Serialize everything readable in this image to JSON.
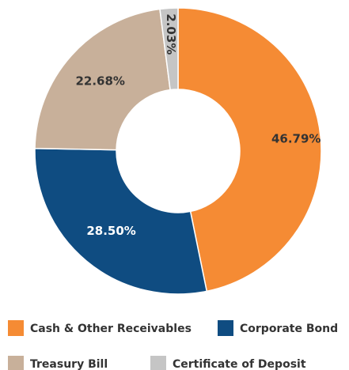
{
  "chart_data": {
    "type": "donut",
    "categories": [
      "Cash & Other Receivables",
      "Corporate Bond",
      "Treasury Bill",
      "Certificate of Deposit"
    ],
    "values": [
      46.79,
      28.5,
      22.68,
      2.03
    ],
    "value_labels": [
      "46.79%",
      "28.50%",
      "22.68%",
      "2.03%"
    ],
    "colors": [
      "#f58b34",
      "#0f4c81",
      "#c8b09a",
      "#c5c5c5"
    ]
  }
}
